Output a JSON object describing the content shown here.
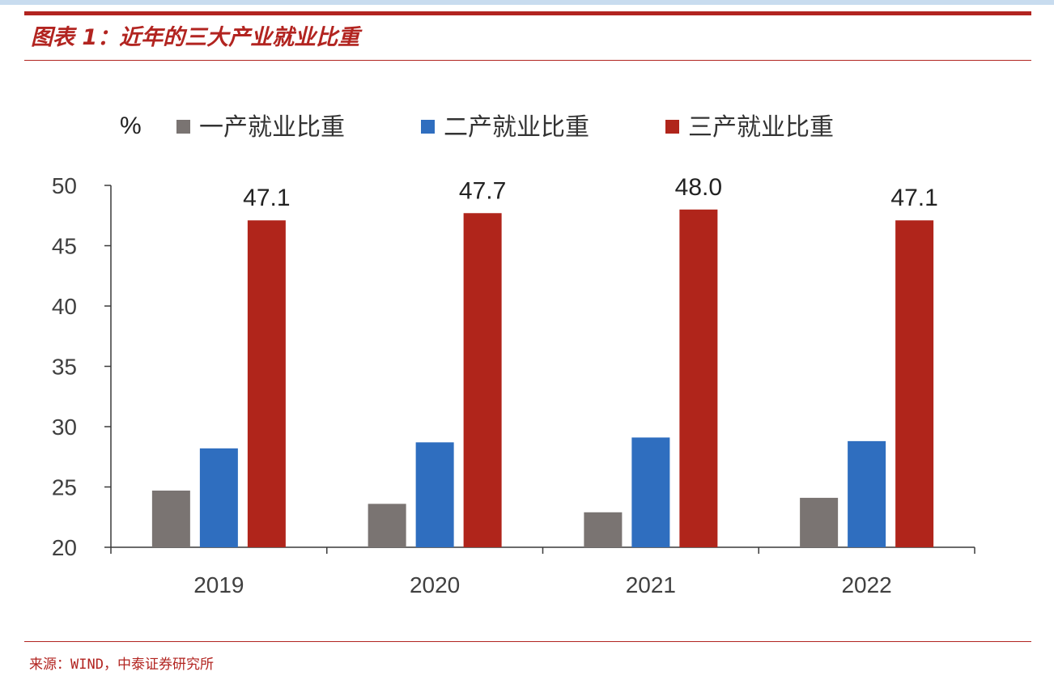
{
  "title": "图表 1：近年的三大产业就业比重",
  "source": "来源：WIND，中泰证券研究所",
  "colors": {
    "accent": "#b22420",
    "series_primary": "#7a7472",
    "series_secondary": "#2f6ebf",
    "series_tertiary": "#b0251b",
    "axis": "#3a3a3a",
    "text": "#404040"
  },
  "chart_data": {
    "type": "bar",
    "title": "",
    "unit_label": "%",
    "xlabel": "",
    "ylabel": "",
    "categories": [
      "2019",
      "2020",
      "2021",
      "2022"
    ],
    "series": [
      {
        "name": "一产就业比重",
        "values": [
          24.7,
          23.6,
          22.9,
          24.1
        ]
      },
      {
        "name": "二产就业比重",
        "values": [
          28.2,
          28.7,
          29.1,
          28.8
        ]
      },
      {
        "name": "三产就业比重",
        "values": [
          47.1,
          47.7,
          48.0,
          47.1
        ],
        "labels": [
          "47.1",
          "47.7",
          "48.0",
          "47.1"
        ]
      }
    ],
    "ylim": [
      20,
      50
    ],
    "yticks": [
      20,
      25,
      30,
      35,
      40,
      45,
      50
    ],
    "grid": false,
    "legend_position": "top"
  }
}
